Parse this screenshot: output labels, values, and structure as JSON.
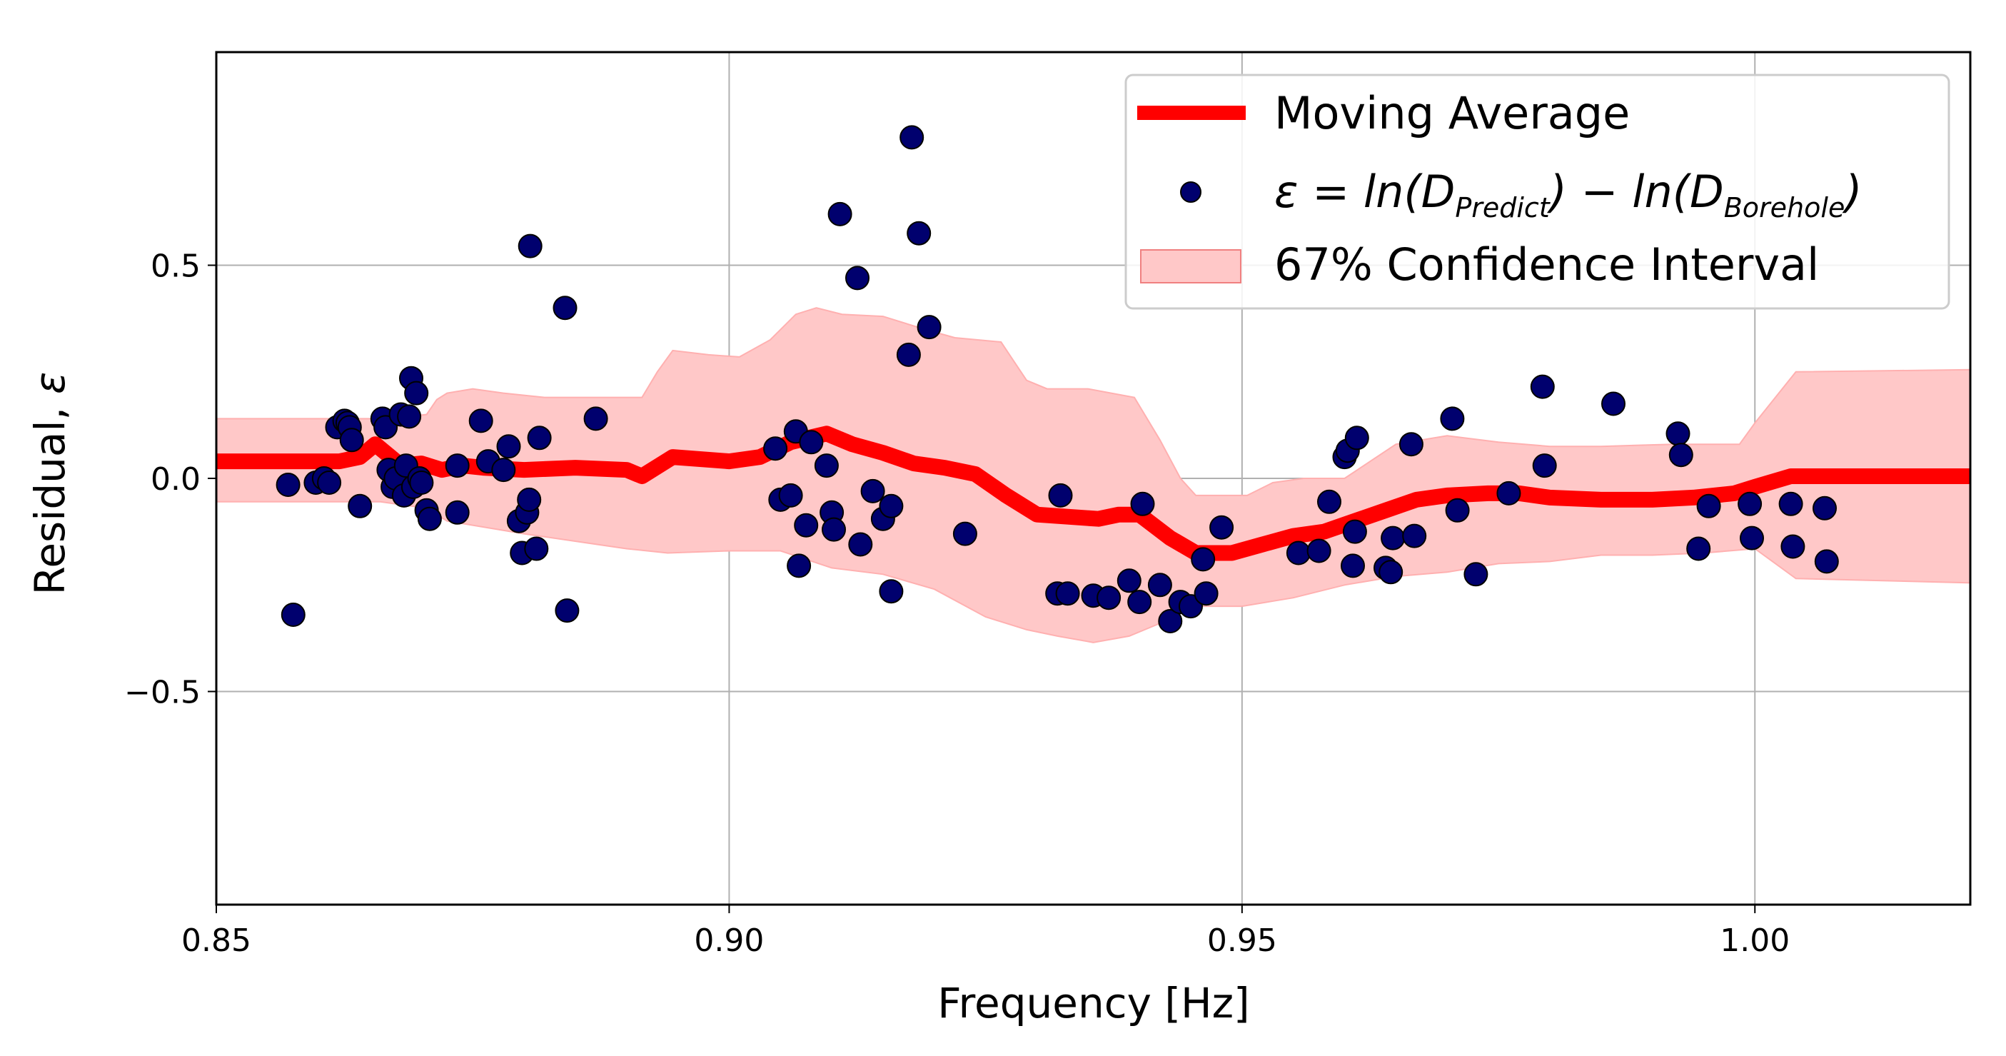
{
  "chart_data": {
    "type": "scatter",
    "title": "",
    "xlabel": "Frequency [Hz]",
    "ylabel": "Residual,",
    "ylabel_symbol": "ε",
    "xlim": [
      0.85,
      1.021
    ],
    "ylim": [
      -1.0,
      1.0
    ],
    "grid": true,
    "xticks": [
      0.85,
      0.9,
      0.95,
      1.0
    ],
    "xtick_labels": [
      "0.85",
      "0.90",
      "0.95",
      "1.00"
    ],
    "yticks": [
      -0.5,
      0.0,
      0.5
    ],
    "ytick_labels": [
      "−0.5",
      "0.0",
      "0.5"
    ],
    "legend": {
      "position": "upper-right",
      "entries": [
        {
          "kind": "line",
          "label": "Moving Average",
          "color": "#ff0000"
        },
        {
          "kind": "marker",
          "label_parts": [
            "ε = ln(D",
            "Predict",
            ") − ln(D",
            "Borehole",
            ")"
          ],
          "color": "#00006e"
        },
        {
          "kind": "patch",
          "label": "67% Confidence Interval",
          "color": "#ffc8c8"
        }
      ]
    },
    "series": [
      {
        "name": "ε = ln(D_Predict) − ln(D_Borehole)",
        "kind": "scatter",
        "color": "#00006e",
        "edgecolor": "#000000",
        "points": [
          [
            0.857,
            -0.015
          ],
          [
            0.8575,
            -0.32
          ],
          [
            0.8597,
            -0.01
          ],
          [
            0.8605,
            0.0
          ],
          [
            0.861,
            -0.01
          ],
          [
            0.8618,
            0.12
          ],
          [
            0.8625,
            0.135
          ],
          [
            0.8628,
            0.13
          ],
          [
            0.863,
            0.12
          ],
          [
            0.8632,
            0.09
          ],
          [
            0.864,
            -0.065
          ],
          [
            0.8662,
            0.14
          ],
          [
            0.8665,
            0.12
          ],
          [
            0.8668,
            0.02
          ],
          [
            0.8672,
            -0.02
          ],
          [
            0.8675,
            0.0
          ],
          [
            0.868,
            0.15
          ],
          [
            0.8683,
            -0.04
          ],
          [
            0.8685,
            0.03
          ],
          [
            0.8688,
            0.145
          ],
          [
            0.869,
            0.235
          ],
          [
            0.8692,
            -0.02
          ],
          [
            0.8695,
            0.2
          ],
          [
            0.8698,
            0.0
          ],
          [
            0.87,
            -0.01
          ],
          [
            0.8705,
            -0.075
          ],
          [
            0.8708,
            -0.095
          ],
          [
            0.8735,
            -0.08
          ],
          [
            0.8735,
            0.03
          ],
          [
            0.8758,
            0.135
          ],
          [
            0.8765,
            0.04
          ],
          [
            0.878,
            0.02
          ],
          [
            0.8785,
            0.075
          ],
          [
            0.8795,
            -0.1
          ],
          [
            0.8798,
            -0.175
          ],
          [
            0.8803,
            -0.08
          ],
          [
            0.8805,
            -0.05
          ],
          [
            0.8806,
            0.545
          ],
          [
            0.8812,
            -0.165
          ],
          [
            0.8815,
            0.095
          ],
          [
            0.884,
            0.4
          ],
          [
            0.8842,
            -0.31
          ],
          [
            0.887,
            0.14
          ],
          [
            0.9045,
            0.07
          ],
          [
            0.905,
            -0.05
          ],
          [
            0.906,
            -0.04
          ],
          [
            0.9065,
            0.11
          ],
          [
            0.9068,
            -0.205
          ],
          [
            0.9075,
            -0.11
          ],
          [
            0.908,
            0.085
          ],
          [
            0.9095,
            0.03
          ],
          [
            0.91,
            -0.08
          ],
          [
            0.9102,
            -0.12
          ],
          [
            0.9108,
            0.62
          ],
          [
            0.9125,
            0.47
          ],
          [
            0.9128,
            -0.155
          ],
          [
            0.914,
            -0.03
          ],
          [
            0.915,
            -0.095
          ],
          [
            0.9158,
            -0.065
          ],
          [
            0.9158,
            -0.265
          ],
          [
            0.9175,
            0.29
          ],
          [
            0.9178,
            0.8
          ],
          [
            0.9185,
            0.575
          ],
          [
            0.9195,
            0.355
          ],
          [
            0.923,
            -0.13
          ],
          [
            0.932,
            -0.27
          ],
          [
            0.9323,
            -0.04
          ],
          [
            0.933,
            -0.27
          ],
          [
            0.9355,
            -0.275
          ],
          [
            0.937,
            -0.28
          ],
          [
            0.939,
            -0.24
          ],
          [
            0.94,
            -0.29
          ],
          [
            0.9403,
            -0.06
          ],
          [
            0.942,
            -0.25
          ],
          [
            0.943,
            -0.335
          ],
          [
            0.944,
            -0.29
          ],
          [
            0.945,
            -0.3
          ],
          [
            0.9462,
            -0.19
          ],
          [
            0.9465,
            -0.27
          ],
          [
            0.948,
            -0.115
          ],
          [
            0.9555,
            -0.175
          ],
          [
            0.9575,
            -0.17
          ],
          [
            0.9585,
            -0.055
          ],
          [
            0.96,
            0.05
          ],
          [
            0.9603,
            0.065
          ],
          [
            0.9608,
            -0.205
          ],
          [
            0.961,
            -0.125
          ],
          [
            0.9612,
            0.095
          ],
          [
            0.964,
            -0.21
          ],
          [
            0.9645,
            -0.22
          ],
          [
            0.9647,
            -0.14
          ],
          [
            0.9665,
            0.08
          ],
          [
            0.9668,
            -0.135
          ],
          [
            0.9705,
            0.14
          ],
          [
            0.971,
            -0.075
          ],
          [
            0.9728,
            -0.225
          ],
          [
            0.976,
            -0.035
          ],
          [
            0.9793,
            0.215
          ],
          [
            0.9795,
            0.03
          ],
          [
            0.9862,
            0.175
          ],
          [
            0.9925,
            0.105
          ],
          [
            0.9928,
            0.055
          ],
          [
            0.9945,
            -0.165
          ],
          [
            0.9955,
            -0.065
          ],
          [
            0.9995,
            -0.06
          ],
          [
            0.9997,
            -0.14
          ],
          [
            1.0035,
            -0.06
          ],
          [
            1.0037,
            -0.16
          ],
          [
            1.0068,
            -0.07
          ],
          [
            1.007,
            -0.195
          ]
        ]
      },
      {
        "name": "Moving Average",
        "kind": "line",
        "color": "#ff0000",
        "points": [
          [
            0.85,
            0.04
          ],
          [
            0.862,
            0.04
          ],
          [
            0.864,
            0.05
          ],
          [
            0.8655,
            0.08
          ],
          [
            0.867,
            0.05
          ],
          [
            0.868,
            0.03
          ],
          [
            0.87,
            0.035
          ],
          [
            0.872,
            0.02
          ],
          [
            0.874,
            0.03
          ],
          [
            0.876,
            0.025
          ],
          [
            0.88,
            0.02
          ],
          [
            0.885,
            0.025
          ],
          [
            0.89,
            0.02
          ],
          [
            0.8915,
            0.005
          ],
          [
            0.8945,
            0.05
          ],
          [
            0.9,
            0.04
          ],
          [
            0.903,
            0.05
          ],
          [
            0.906,
            0.085
          ],
          [
            0.9095,
            0.105
          ],
          [
            0.912,
            0.08
          ],
          [
            0.915,
            0.06
          ],
          [
            0.918,
            0.035
          ],
          [
            0.921,
            0.025
          ],
          [
            0.924,
            0.01
          ],
          [
            0.927,
            -0.04
          ],
          [
            0.93,
            -0.085
          ],
          [
            0.933,
            -0.09
          ],
          [
            0.936,
            -0.095
          ],
          [
            0.938,
            -0.085
          ],
          [
            0.94,
            -0.085
          ],
          [
            0.943,
            -0.14
          ],
          [
            0.9455,
            -0.175
          ],
          [
            0.949,
            -0.175
          ],
          [
            0.952,
            -0.155
          ],
          [
            0.955,
            -0.135
          ],
          [
            0.958,
            -0.125
          ],
          [
            0.961,
            -0.1
          ],
          [
            0.964,
            -0.075
          ],
          [
            0.967,
            -0.05
          ],
          [
            0.97,
            -0.04
          ],
          [
            0.974,
            -0.035
          ],
          [
            0.977,
            -0.035
          ],
          [
            0.98,
            -0.045
          ],
          [
            0.985,
            -0.05
          ],
          [
            0.99,
            -0.05
          ],
          [
            0.994,
            -0.045
          ],
          [
            0.998,
            -0.035
          ],
          [
            1.0,
            -0.02
          ],
          [
            1.0035,
            0.005
          ],
          [
            1.021,
            0.005
          ]
        ]
      },
      {
        "name": "67% Confidence Interval",
        "kind": "band",
        "color": "#ffc8c8",
        "upper": [
          [
            0.85,
            0.14
          ],
          [
            0.864,
            0.14
          ],
          [
            0.867,
            0.14
          ],
          [
            0.8705,
            0.15
          ],
          [
            0.8715,
            0.185
          ],
          [
            0.8725,
            0.2
          ],
          [
            0.875,
            0.21
          ],
          [
            0.878,
            0.2
          ],
          [
            0.882,
            0.19
          ],
          [
            0.886,
            0.19
          ],
          [
            0.89,
            0.19
          ],
          [
            0.8915,
            0.19
          ],
          [
            0.893,
            0.25
          ],
          [
            0.8945,
            0.3
          ],
          [
            0.898,
            0.29
          ],
          [
            0.901,
            0.285
          ],
          [
            0.904,
            0.325
          ],
          [
            0.9065,
            0.385
          ],
          [
            0.9085,
            0.4
          ],
          [
            0.911,
            0.385
          ],
          [
            0.915,
            0.38
          ],
          [
            0.919,
            0.35
          ],
          [
            0.922,
            0.33
          ],
          [
            0.9265,
            0.32
          ],
          [
            0.929,
            0.23
          ],
          [
            0.931,
            0.21
          ],
          [
            0.935,
            0.21
          ],
          [
            0.9395,
            0.19
          ],
          [
            0.942,
            0.09
          ],
          [
            0.944,
            0.0
          ],
          [
            0.9455,
            -0.04
          ],
          [
            0.9505,
            -0.04
          ],
          [
            0.953,
            -0.01
          ],
          [
            0.956,
            0.0
          ],
          [
            0.96,
            0.0
          ],
          [
            0.965,
            0.08
          ],
          [
            0.97,
            0.1
          ],
          [
            0.975,
            0.085
          ],
          [
            0.98,
            0.075
          ],
          [
            0.985,
            0.075
          ],
          [
            0.992,
            0.08
          ],
          [
            0.9985,
            0.08
          ],
          [
            1.0,
            0.13
          ],
          [
            1.004,
            0.25
          ],
          [
            1.021,
            0.255
          ]
        ],
        "lower": [
          [
            0.85,
            -0.055
          ],
          [
            0.866,
            -0.055
          ],
          [
            0.8705,
            -0.07
          ],
          [
            0.8725,
            -0.1
          ],
          [
            0.88,
            -0.13
          ],
          [
            0.89,
            -0.165
          ],
          [
            0.894,
            -0.175
          ],
          [
            0.9,
            -0.17
          ],
          [
            0.905,
            -0.17
          ],
          [
            0.91,
            -0.21
          ],
          [
            0.915,
            -0.225
          ],
          [
            0.92,
            -0.26
          ],
          [
            0.925,
            -0.325
          ],
          [
            0.929,
            -0.355
          ],
          [
            0.932,
            -0.37
          ],
          [
            0.9355,
            -0.385
          ],
          [
            0.939,
            -0.37
          ],
          [
            0.942,
            -0.34
          ],
          [
            0.9455,
            -0.3
          ],
          [
            0.95,
            -0.3
          ],
          [
            0.955,
            -0.28
          ],
          [
            0.96,
            -0.25
          ],
          [
            0.965,
            -0.23
          ],
          [
            0.97,
            -0.22
          ],
          [
            0.975,
            -0.2
          ],
          [
            0.98,
            -0.195
          ],
          [
            0.985,
            -0.18
          ],
          [
            0.99,
            -0.18
          ],
          [
            0.995,
            -0.175
          ],
          [
            1.0,
            -0.165
          ],
          [
            1.004,
            -0.235
          ],
          [
            1.021,
            -0.245
          ]
        ]
      }
    ]
  }
}
